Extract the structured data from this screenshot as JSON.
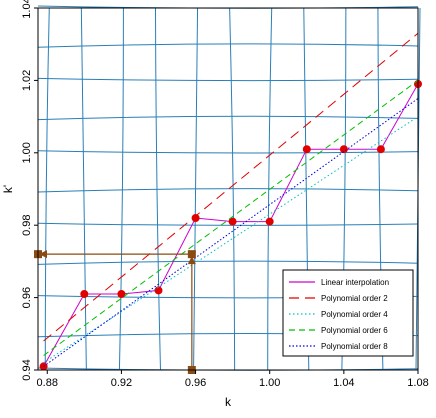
{
  "chart_data": {
    "type": "line",
    "title": "",
    "xlabel": "k",
    "ylabel": "k'",
    "xlim": [
      0.875,
      1.08
    ],
    "ylim": [
      0.94,
      1.04
    ],
    "x_ticks": [
      "0.88",
      "0.92",
      "0.96",
      "1.00",
      "1.04",
      "1.08"
    ],
    "x_tick_values": [
      0.88,
      0.92,
      0.96,
      1.0,
      1.04,
      1.08
    ],
    "y_ticks": [
      "0.94",
      "0.96",
      "0.98",
      "1.00",
      "1.02",
      "1.04"
    ],
    "y_tick_values": [
      0.94,
      0.96,
      0.98,
      1.0,
      1.02,
      1.04
    ],
    "grid": true,
    "grid_style": "blue lines with wavy gridlines",
    "legend_position": "bottom-right",
    "series": [
      {
        "name": "Linear interpolation",
        "color": "#d000d0",
        "dash": "solid",
        "markers": true,
        "x": [
          0.878,
          0.9,
          0.92,
          0.94,
          0.96,
          0.98,
          1.0,
          1.02,
          1.04,
          1.06,
          1.08
        ],
        "y": [
          0.941,
          0.961,
          0.961,
          0.962,
          0.982,
          0.981,
          0.981,
          1.001,
          1.001,
          1.001,
          1.019
        ]
      },
      {
        "name": "Polynomial order 2",
        "color": "#e00000",
        "dash": "10,6",
        "x": [
          0.878,
          1.08
        ],
        "y": [
          0.948,
          1.033
        ]
      },
      {
        "name": "Polynomial order 4",
        "color": "#00c0c0",
        "dash": "1.5,2.5",
        "x": [
          0.878,
          1.08
        ],
        "y": [
          0.942,
          1.01
        ]
      },
      {
        "name": "Polynomial order 6",
        "color": "#00c000",
        "dash": "6,4",
        "x": [
          0.878,
          1.08
        ],
        "y": [
          0.944,
          1.02
        ]
      },
      {
        "name": "Polynomial order 8",
        "color": "#0000e0",
        "dash": "1.5,2",
        "x": [
          0.878,
          1.08
        ],
        "y": [
          0.941,
          1.015
        ]
      }
    ],
    "annotation": {
      "color": "#8a4b12",
      "x_value": 0.958,
      "y_value": 0.972,
      "description": "brown arrows from k = 0.96 up to the interpolation line and across to the k' axis"
    }
  }
}
